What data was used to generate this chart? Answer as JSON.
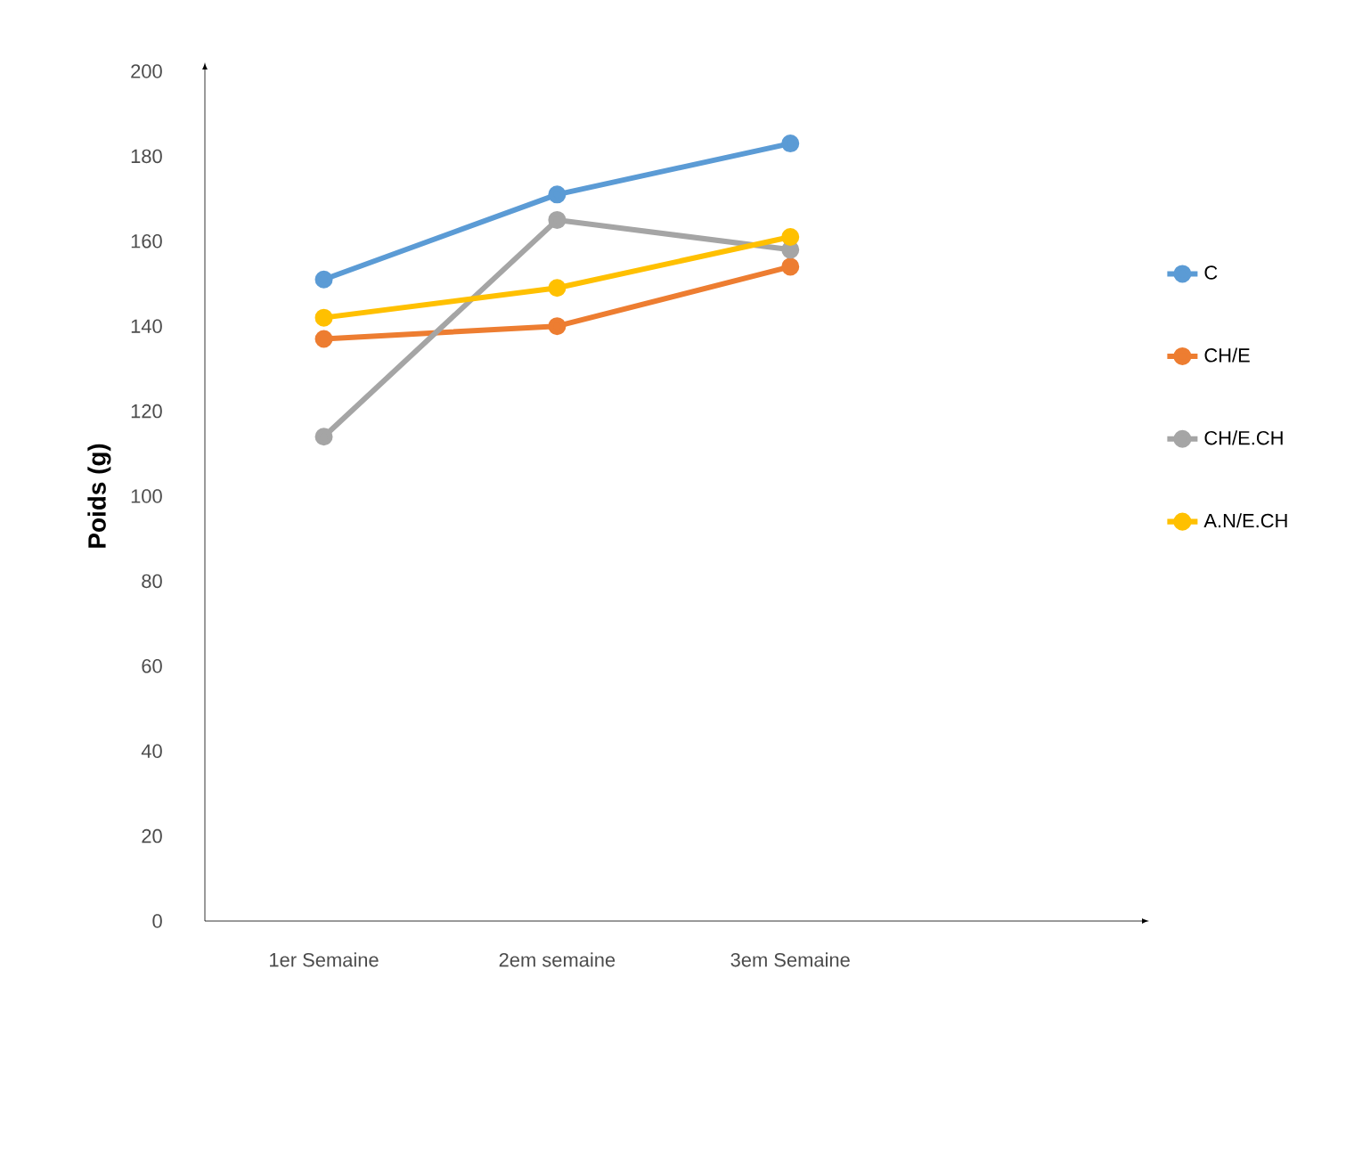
{
  "chart_data": {
    "type": "line",
    "ylabel": "Poids (g)",
    "categories": [
      "1er Semaine",
      "2em semaine",
      "3em Semaine"
    ],
    "series": [
      {
        "name": "C",
        "color": "#5b9bd5",
        "values": [
          151,
          171,
          183
        ]
      },
      {
        "name": "CH/E",
        "color": "#ed7d31",
        "values": [
          137,
          140,
          154
        ]
      },
      {
        "name": "CH/E.CH",
        "color": "#a5a5a5",
        "values": [
          114,
          165,
          158
        ]
      },
      {
        "name": "A.N/E.CH",
        "color": "#ffc000",
        "values": [
          142,
          149,
          161
        ]
      }
    ],
    "ylim": [
      0,
      200
    ],
    "yticks": [
      0,
      20,
      40,
      60,
      80,
      100,
      120,
      140,
      160,
      180,
      200
    ],
    "legend": "right",
    "marker": "circle",
    "line_style": "solid",
    "grid": false
  }
}
